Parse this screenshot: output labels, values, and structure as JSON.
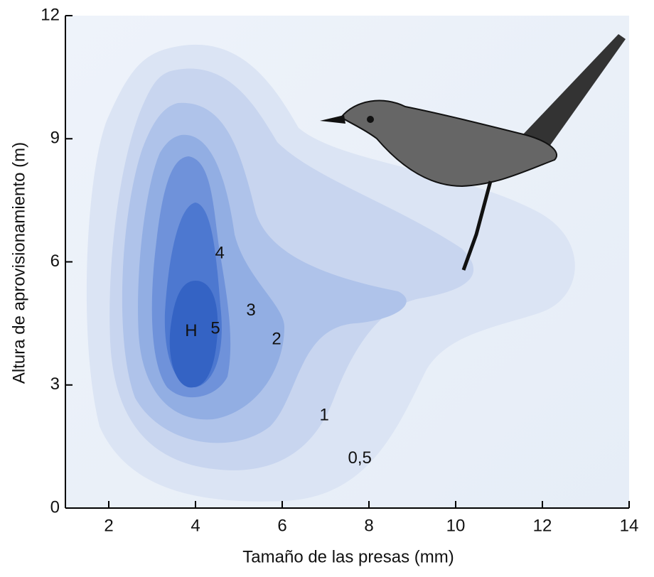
{
  "chart_data": {
    "type": "contour",
    "xlabel": "Tamaño de las presas (mm)",
    "ylabel": "Altura de aprovisionamiento (m)",
    "xlim": [
      1,
      14
    ],
    "xticks": [
      2,
      4,
      6,
      8,
      10,
      12,
      14
    ],
    "ylim": [
      0,
      12
    ],
    "yticks": [
      0,
      3,
      6,
      9,
      12
    ],
    "annotations": [
      {
        "text": "H",
        "x": 3.9,
        "y": 4.3
      },
      {
        "text": "5",
        "x": 4.46,
        "y": 4.36
      },
      {
        "text": "4",
        "x": 4.56,
        "y": 6.2
      },
      {
        "text": "3",
        "x": 5.28,
        "y": 4.8
      },
      {
        "text": "2",
        "x": 5.87,
        "y": 4.1
      },
      {
        "text": "1",
        "x": 6.97,
        "y": 2.25
      },
      {
        "text": "0,5",
        "x": 7.79,
        "y": 1.2
      }
    ]
  }
}
